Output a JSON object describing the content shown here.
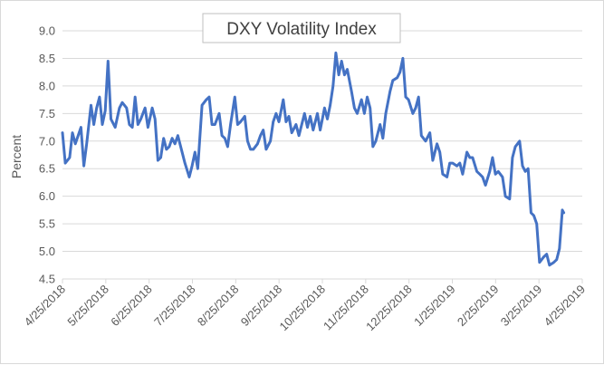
{
  "chart_data": {
    "type": "line",
    "title": "DXY Volatility Index",
    "xlabel": "",
    "ylabel": "Percent",
    "ylim": [
      4.5,
      9.0
    ],
    "yticks": [
      "4.5",
      "5.0",
      "5.5",
      "6.0",
      "6.5",
      "7.0",
      "7.5",
      "8.0",
      "8.5",
      "9.0"
    ],
    "xticks": [
      "4/25/2018",
      "5/25/2018",
      "6/25/2018",
      "7/25/2018",
      "8/25/2018",
      "9/25/2018",
      "10/25/2018",
      "11/25/2018",
      "12/25/2018",
      "1/25/2019",
      "2/25/2019",
      "3/25/2019",
      "4/25/2019"
    ],
    "xlim": [
      "2018-04-25",
      "2019-04-25"
    ],
    "grid": "horizontal",
    "legend": "none",
    "series_color": "#4472c4",
    "series": [
      {
        "points": [
          [
            "2018-04-25",
            7.15
          ],
          [
            "2018-04-27",
            6.6
          ],
          [
            "2018-04-30",
            6.7
          ],
          [
            "2018-05-02",
            7.15
          ],
          [
            "2018-05-04",
            6.95
          ],
          [
            "2018-05-06",
            7.1
          ],
          [
            "2018-05-08",
            7.25
          ],
          [
            "2018-05-10",
            6.55
          ],
          [
            "2018-05-12",
            6.95
          ],
          [
            "2018-05-15",
            7.65
          ],
          [
            "2018-05-17",
            7.3
          ],
          [
            "2018-05-19",
            7.6
          ],
          [
            "2018-05-21",
            7.8
          ],
          [
            "2018-05-23",
            7.3
          ],
          [
            "2018-05-25",
            7.55
          ],
          [
            "2018-05-27",
            8.45
          ],
          [
            "2018-05-29",
            7.4
          ],
          [
            "2018-06-01",
            7.25
          ],
          [
            "2018-06-04",
            7.6
          ],
          [
            "2018-06-06",
            7.7
          ],
          [
            "2018-06-09",
            7.6
          ],
          [
            "2018-06-11",
            7.3
          ],
          [
            "2018-06-13",
            7.25
          ],
          [
            "2018-06-15",
            7.8
          ],
          [
            "2018-06-17",
            7.3
          ],
          [
            "2018-06-19",
            7.4
          ],
          [
            "2018-06-22",
            7.6
          ],
          [
            "2018-06-24",
            7.25
          ],
          [
            "2018-06-27",
            7.6
          ],
          [
            "2018-06-29",
            7.4
          ],
          [
            "2018-07-01",
            6.65
          ],
          [
            "2018-07-03",
            6.7
          ],
          [
            "2018-07-05",
            7.05
          ],
          [
            "2018-07-07",
            6.85
          ],
          [
            "2018-07-09",
            6.9
          ],
          [
            "2018-07-11",
            7.05
          ],
          [
            "2018-07-13",
            6.95
          ],
          [
            "2018-07-15",
            7.1
          ],
          [
            "2018-07-18",
            6.8
          ],
          [
            "2018-07-20",
            6.6
          ],
          [
            "2018-07-23",
            6.35
          ],
          [
            "2018-07-25",
            6.55
          ],
          [
            "2018-07-27",
            6.8
          ],
          [
            "2018-07-29",
            6.5
          ],
          [
            "2018-08-01",
            7.65
          ],
          [
            "2018-08-04",
            7.75
          ],
          [
            "2018-08-06",
            7.8
          ],
          [
            "2018-08-08",
            7.3
          ],
          [
            "2018-08-10",
            7.3
          ],
          [
            "2018-08-13",
            7.5
          ],
          [
            "2018-08-15",
            7.1
          ],
          [
            "2018-08-17",
            7.05
          ],
          [
            "2018-08-19",
            6.9
          ],
          [
            "2018-08-21",
            7.3
          ],
          [
            "2018-08-24",
            7.8
          ],
          [
            "2018-08-26",
            7.3
          ],
          [
            "2018-08-28",
            7.35
          ],
          [
            "2018-08-31",
            7.45
          ],
          [
            "2018-09-02",
            7.0
          ],
          [
            "2018-09-04",
            6.85
          ],
          [
            "2018-09-06",
            6.85
          ],
          [
            "2018-09-09",
            6.95
          ],
          [
            "2018-09-11",
            7.1
          ],
          [
            "2018-09-13",
            7.2
          ],
          [
            "2018-09-15",
            6.85
          ],
          [
            "2018-09-18",
            7.0
          ],
          [
            "2018-09-20",
            7.35
          ],
          [
            "2018-09-22",
            7.5
          ],
          [
            "2018-09-24",
            7.35
          ],
          [
            "2018-09-27",
            7.75
          ],
          [
            "2018-09-29",
            7.35
          ],
          [
            "2018-10-01",
            7.45
          ],
          [
            "2018-10-03",
            7.15
          ],
          [
            "2018-10-06",
            7.3
          ],
          [
            "2018-10-08",
            7.1
          ],
          [
            "2018-10-10",
            7.3
          ],
          [
            "2018-10-12",
            7.5
          ],
          [
            "2018-10-14",
            7.25
          ],
          [
            "2018-10-16",
            7.45
          ],
          [
            "2018-10-18",
            7.2
          ],
          [
            "2018-10-21",
            7.5
          ],
          [
            "2018-10-23",
            7.2
          ],
          [
            "2018-10-26",
            7.6
          ],
          [
            "2018-10-28",
            7.4
          ],
          [
            "2018-10-30",
            7.65
          ],
          [
            "2018-11-01",
            8.0
          ],
          [
            "2018-11-03",
            8.6
          ],
          [
            "2018-11-05",
            8.2
          ],
          [
            "2018-11-07",
            8.45
          ],
          [
            "2018-11-09",
            8.2
          ],
          [
            "2018-11-11",
            8.3
          ],
          [
            "2018-11-14",
            7.9
          ],
          [
            "2018-11-16",
            7.6
          ],
          [
            "2018-11-18",
            7.5
          ],
          [
            "2018-11-21",
            7.75
          ],
          [
            "2018-11-23",
            7.5
          ],
          [
            "2018-11-25",
            7.8
          ],
          [
            "2018-11-27",
            7.6
          ],
          [
            "2018-11-29",
            6.9
          ],
          [
            "2018-12-01",
            7.0
          ],
          [
            "2018-12-04",
            7.3
          ],
          [
            "2018-12-06",
            7.05
          ],
          [
            "2018-12-08",
            7.5
          ],
          [
            "2018-12-11",
            7.9
          ],
          [
            "2018-12-13",
            8.1
          ],
          [
            "2018-12-16",
            8.15
          ],
          [
            "2018-12-18",
            8.25
          ],
          [
            "2018-12-20",
            8.5
          ],
          [
            "2018-12-22",
            7.8
          ],
          [
            "2018-12-24",
            7.75
          ],
          [
            "2018-12-27",
            7.5
          ],
          [
            "2018-12-29",
            7.6
          ],
          [
            "2018-12-31",
            7.8
          ],
          [
            "2019-01-02",
            7.1
          ],
          [
            "2019-01-05",
            7.0
          ],
          [
            "2019-01-08",
            7.15
          ],
          [
            "2019-01-10",
            6.65
          ],
          [
            "2019-01-13",
            6.95
          ],
          [
            "2019-01-15",
            6.8
          ],
          [
            "2019-01-17",
            6.4
          ],
          [
            "2019-01-20",
            6.35
          ],
          [
            "2019-01-22",
            6.6
          ],
          [
            "2019-01-24",
            6.6
          ],
          [
            "2019-01-27",
            6.55
          ],
          [
            "2019-01-29",
            6.6
          ],
          [
            "2019-01-31",
            6.4
          ],
          [
            "2019-02-03",
            6.8
          ],
          [
            "2019-02-05",
            6.7
          ],
          [
            "2019-02-07",
            6.7
          ],
          [
            "2019-02-10",
            6.45
          ],
          [
            "2019-02-12",
            6.4
          ],
          [
            "2019-02-14",
            6.35
          ],
          [
            "2019-02-16",
            6.2
          ],
          [
            "2019-02-19",
            6.45
          ],
          [
            "2019-02-21",
            6.7
          ],
          [
            "2019-02-23",
            6.4
          ],
          [
            "2019-02-25",
            6.45
          ],
          [
            "2019-02-28",
            6.35
          ],
          [
            "2019-03-02",
            6.0
          ],
          [
            "2019-03-05",
            5.95
          ],
          [
            "2019-03-07",
            6.7
          ],
          [
            "2019-03-09",
            6.9
          ],
          [
            "2019-03-12",
            7.0
          ],
          [
            "2019-03-14",
            6.55
          ],
          [
            "2019-03-16",
            6.45
          ],
          [
            "2019-03-18",
            6.5
          ],
          [
            "2019-03-20",
            5.7
          ],
          [
            "2019-03-22",
            5.65
          ],
          [
            "2019-03-24",
            5.5
          ],
          [
            "2019-03-26",
            4.8
          ],
          [
            "2019-03-29",
            4.9
          ],
          [
            "2019-03-31",
            4.95
          ],
          [
            "2019-04-02",
            4.75
          ],
          [
            "2019-04-05",
            4.8
          ],
          [
            "2019-04-07",
            4.85
          ],
          [
            "2019-04-09",
            5.05
          ],
          [
            "2019-04-11",
            5.75
          ],
          [
            "2019-04-12",
            5.7
          ]
        ]
      }
    ]
  }
}
